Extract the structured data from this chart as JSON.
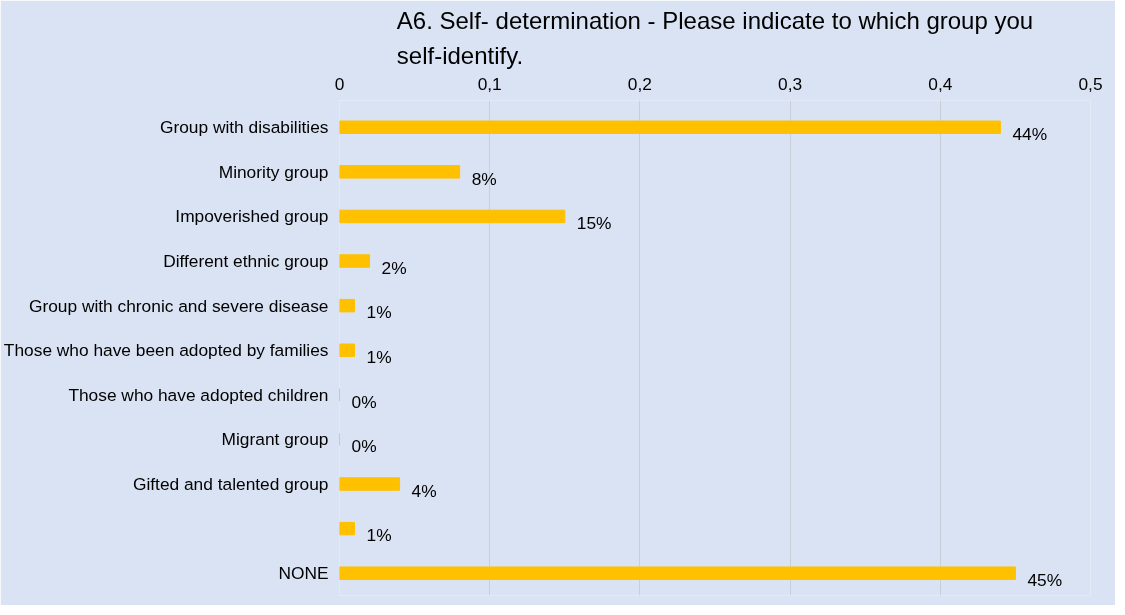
{
  "chart_data": {
    "type": "bar",
    "orientation": "horizontal",
    "title": "A6. Self- determination - Please indicate to which group you\nself-identify.",
    "categories": [
      "Group with disabilities",
      "Minority group",
      "Impoverished group",
      "Different ethnic group",
      "Group with chronic and severe disease",
      "Those who have been adopted by families",
      "Those who have adopted children",
      "Migrant group",
      "Gifted and talented group",
      null,
      "NONE"
    ],
    "series": [
      {
        "color": "#ffc000",
        "values": [
          0.44,
          0.08,
          0.15,
          0.02,
          0.01,
          0.01,
          0.0,
          0.0,
          0.04,
          0.01,
          0.45
        ],
        "value_labels": [
          "44%",
          "8%",
          "15%",
          "2%",
          "1%",
          "1%",
          "0%",
          "0%",
          "4%",
          "1%",
          "45%"
        ]
      }
    ],
    "xlim": [
      0,
      0.5
    ],
    "xticks": [
      0,
      {
        "value": 0.1,
        "label": "0,1"
      },
      {
        "value": 0.2,
        "label": "0,2"
      },
      {
        "value": 0.3,
        "label": "0,3"
      },
      {
        "value": 0.4,
        "label": "0,4"
      },
      {
        "value": 0.5,
        "label": "0,5"
      }
    ],
    "grid": "x"
  }
}
